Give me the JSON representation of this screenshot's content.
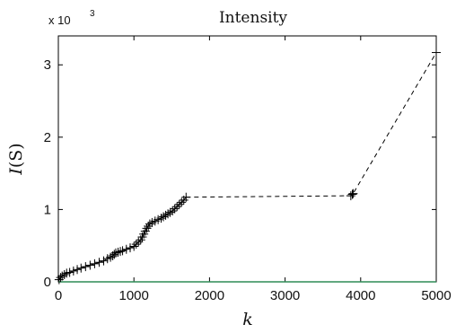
{
  "chart_data": {
    "type": "line",
    "title": "Intensity",
    "xlabel": "k",
    "ylabel_italic": "I",
    "ylabel_rest": "(S)",
    "y_multiplier": "x 10",
    "y_multiplier_exp": "3",
    "xlim": [
      0,
      5000
    ],
    "ylim": [
      0,
      3.4
    ],
    "x_ticks": [
      0,
      1000,
      2000,
      3000,
      4000,
      5000
    ],
    "y_ticks": [
      0,
      1,
      2,
      3
    ],
    "grid": false,
    "line_color": "#000000",
    "baseline_color": "#2e8b57",
    "series": [
      {
        "line_style": "solid-then-dashed",
        "marker": "+",
        "x": [
          10,
          30,
          50,
          80,
          110,
          150,
          200,
          250,
          300,
          360,
          420,
          480,
          540,
          600,
          650,
          690,
          720,
          740,
          760,
          790,
          820,
          850,
          900,
          950,
          1000,
          1030,
          1060,
          1090,
          1110,
          1130,
          1150,
          1170,
          1190,
          1210,
          1240,
          1280,
          1320,
          1360,
          1390,
          1420,
          1450,
          1480,
          1510,
          1540,
          1570,
          1600,
          1630,
          1660,
          1690,
          3870,
          3890,
          3900,
          5000
        ],
        "y": [
          0.03,
          0.06,
          0.08,
          0.1,
          0.12,
          0.13,
          0.15,
          0.17,
          0.19,
          0.21,
          0.23,
          0.25,
          0.27,
          0.29,
          0.32,
          0.34,
          0.36,
          0.38,
          0.4,
          0.41,
          0.42,
          0.43,
          0.45,
          0.47,
          0.49,
          0.52,
          0.55,
          0.58,
          0.62,
          0.66,
          0.7,
          0.74,
          0.77,
          0.8,
          0.82,
          0.84,
          0.86,
          0.88,
          0.9,
          0.92,
          0.94,
          0.96,
          0.98,
          1.01,
          1.04,
          1.07,
          1.1,
          1.13,
          1.17,
          1.19,
          1.21,
          1.22,
          3.17
        ],
        "solid_until_index": 48
      }
    ]
  }
}
